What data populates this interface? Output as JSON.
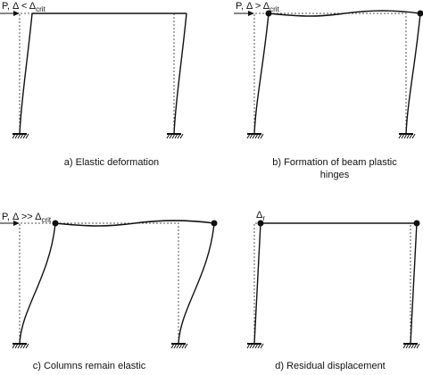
{
  "panels": [
    {
      "label": {
        "main": "P, Δ < Δ",
        "sub": "crit"
      },
      "caption": "a) Elastic deformation"
    },
    {
      "label": {
        "main": "P, Δ > Δ",
        "sub": "crit"
      },
      "caption": "b) Formation of beam plastic hinges"
    },
    {
      "label": {
        "main": "P, Δ >> Δ",
        "sub": "crit"
      },
      "caption": "c) Columns remain elastic"
    },
    {
      "label": {
        "main": "Δ",
        "sub": "r"
      },
      "caption": "d) Residual displacement"
    }
  ]
}
